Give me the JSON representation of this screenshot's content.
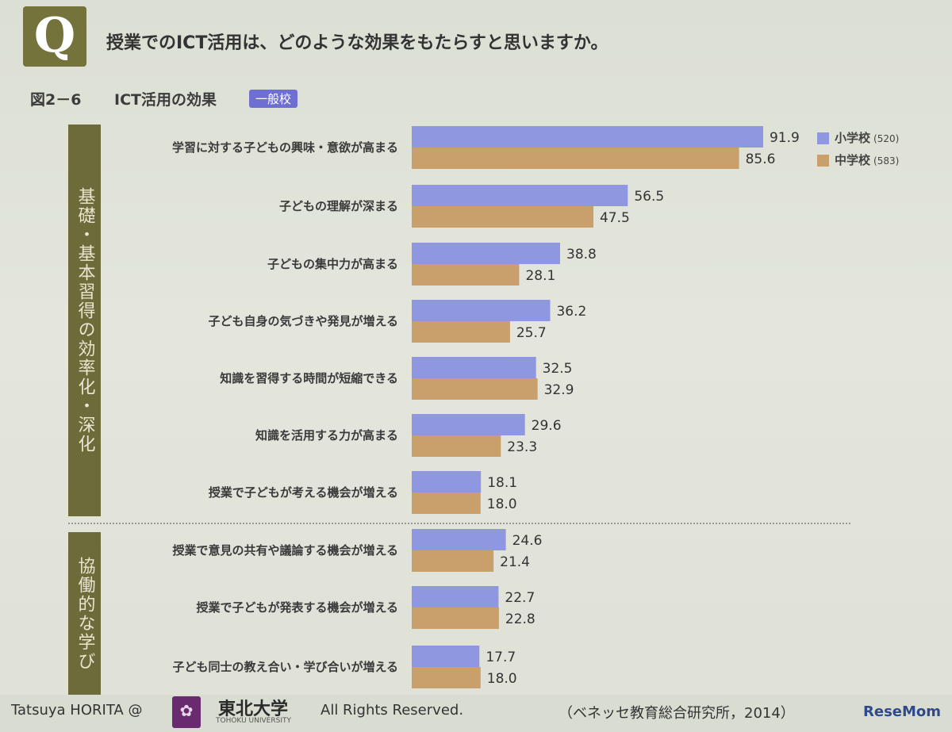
{
  "header": {
    "q_letter": "Q",
    "question": "授業でのICT活用は、どのような効果をもたらすと思いますか。",
    "figure_label": "図2－6",
    "figure_title": "ICT活用の効果",
    "figure_tag": "一般校"
  },
  "groups": [
    {
      "label": "基礎・基本習得の効率化・深化"
    },
    {
      "label": "協働的な学び"
    }
  ],
  "legend": [
    {
      "name": "小学校",
      "n": "(520)"
    },
    {
      "name": "中学校",
      "n": "(583)"
    }
  ],
  "colors": {
    "elementary": "#8f97e0",
    "junior": "#c9a06c",
    "group_bar": "#6d6b3a",
    "accent": "#6f6fd1"
  },
  "chart_data": {
    "type": "bar",
    "orientation": "horizontal",
    "categories": [
      "学習に対する子どもの興味・意欲が高まる",
      "子どもの理解が深まる",
      "子どもの集中力が高まる",
      "子ども自身の気づきや発見が増える",
      "知識を習得する時間が短縮できる",
      "知識を活用する力が高まる",
      "授業で子どもが考える機会が増える",
      "授業で意見の共有や議論する機会が増える",
      "授業で子どもが発表する機会が増える",
      "子ども同士の教え合い・学び合いが増える"
    ],
    "series": [
      {
        "name": "小学校",
        "values": [
          91.9,
          56.5,
          38.8,
          36.2,
          32.5,
          29.6,
          18.1,
          24.6,
          22.7,
          17.7
        ]
      },
      {
        "name": "中学校",
        "values": [
          85.6,
          47.5,
          28.1,
          25.7,
          32.9,
          23.3,
          18.0,
          21.4,
          22.8,
          18.0
        ]
      }
    ],
    "xlim": [
      0,
      100
    ]
  },
  "footer": {
    "author": "Tatsuya HORITA @",
    "logo_glyph": "✿",
    "university": "東北大学",
    "university_en": "TOHOKU UNIVERSITY",
    "rights": "All Rights Reserved.",
    "source": "（ベネッセ教育総合研究所，2014）",
    "watermark": "ReseMom"
  }
}
